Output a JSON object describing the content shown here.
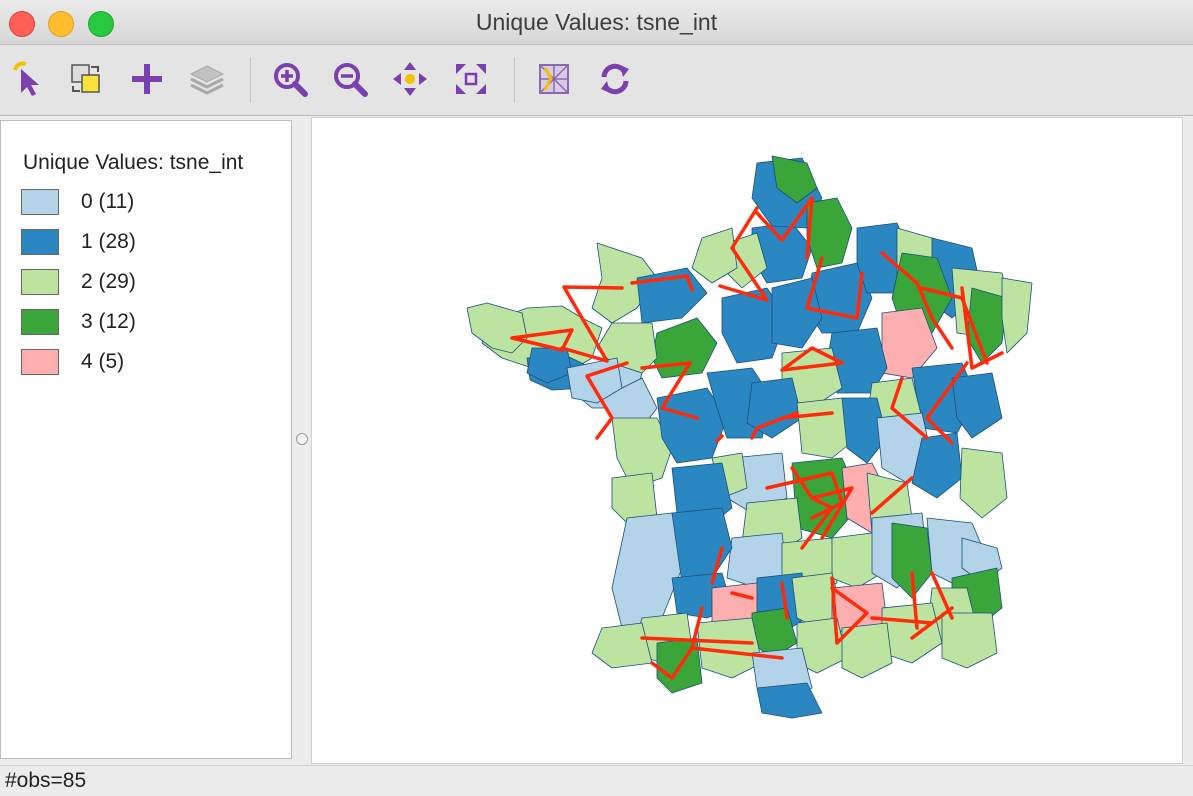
{
  "window": {
    "title": "Unique Values: tsne_int"
  },
  "toolbar": {
    "items": [
      {
        "name": "select-tool",
        "icon": "pointer-icon"
      },
      {
        "name": "selection-shape",
        "icon": "select-shape-icon"
      },
      {
        "name": "add-layer",
        "icon": "plus-icon"
      },
      {
        "name": "layers",
        "icon": "layers-icon"
      },
      {
        "name": "zoom-in",
        "icon": "zoom-in-icon"
      },
      {
        "name": "zoom-out",
        "icon": "zoom-out-icon"
      },
      {
        "name": "pan",
        "icon": "pan-icon"
      },
      {
        "name": "full-extent",
        "icon": "full-extent-icon"
      },
      {
        "name": "basemap",
        "icon": "basemap-icon"
      },
      {
        "name": "refresh",
        "icon": "refresh-icon"
      }
    ]
  },
  "legend": {
    "title": "Unique Values: tsne_int",
    "items": [
      {
        "label": "0 (11)",
        "color": "#b3d3e8"
      },
      {
        "label": "1 (28)",
        "color": "#2b87c1"
      },
      {
        "label": "2 (29)",
        "color": "#bde3a0"
      },
      {
        "label": "3 (12)",
        "color": "#3aa63a"
      },
      {
        "label": "4 (5)",
        "color": "#fdaeae"
      }
    ]
  },
  "map": {
    "link_color": "#ff2a0a",
    "border_color": "#1a4f7a"
  },
  "status": {
    "text": "#obs=85"
  }
}
